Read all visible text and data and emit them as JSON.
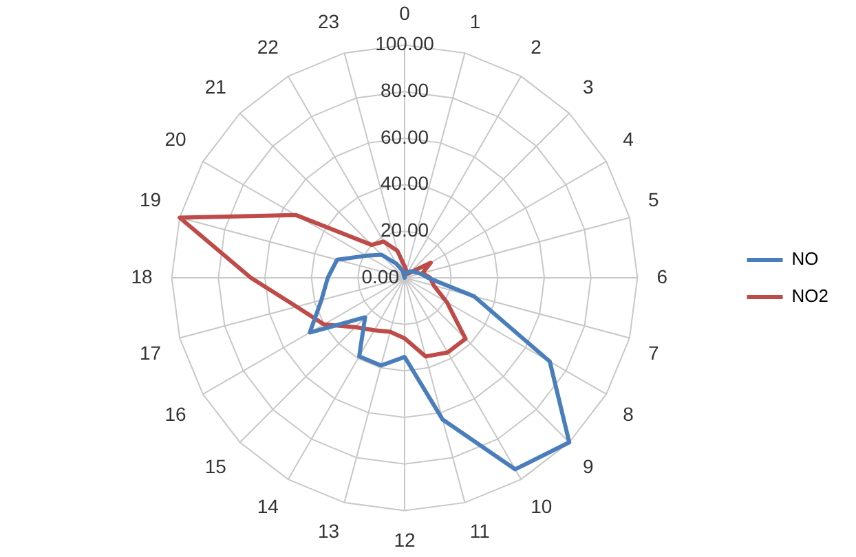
{
  "chart_data": {
    "type": "radar",
    "categories": [
      "0",
      "1",
      "2",
      "3",
      "4",
      "5",
      "6",
      "7",
      "8",
      "9",
      "10",
      "11",
      "12",
      "13",
      "14",
      "15",
      "16",
      "17",
      "18",
      "19",
      "20",
      "21",
      "22",
      "23"
    ],
    "series": [
      {
        "name": "NO",
        "color": "#4a7ebb",
        "values": [
          0,
          2,
          3,
          4,
          5,
          7,
          10,
          31,
          72,
          100,
          95,
          63,
          34,
          39,
          39,
          24,
          47,
          37,
          33,
          30,
          19,
          14,
          7,
          3
        ]
      },
      {
        "name": "NO2",
        "color": "#be4b48",
        "values": [
          5,
          3,
          2,
          3,
          13,
          8,
          11,
          13,
          21,
          37,
          37,
          35,
          26,
          24,
          26,
          30,
          40,
          48,
          66,
          100,
          54,
          20,
          18,
          12
        ]
      }
    ],
    "ylim": [
      0,
      100
    ],
    "yticks": [
      {
        "value": 0,
        "label": "0.00"
      },
      {
        "value": 20,
        "label": "20.00"
      },
      {
        "value": 40,
        "label": "40.00"
      },
      {
        "value": 60,
        "label": "60.00"
      },
      {
        "value": 80,
        "label": "80.00"
      },
      {
        "value": 100,
        "label": "100.00"
      }
    ],
    "grid": true,
    "legend": "right",
    "marker": "none",
    "line_style": "solid"
  }
}
